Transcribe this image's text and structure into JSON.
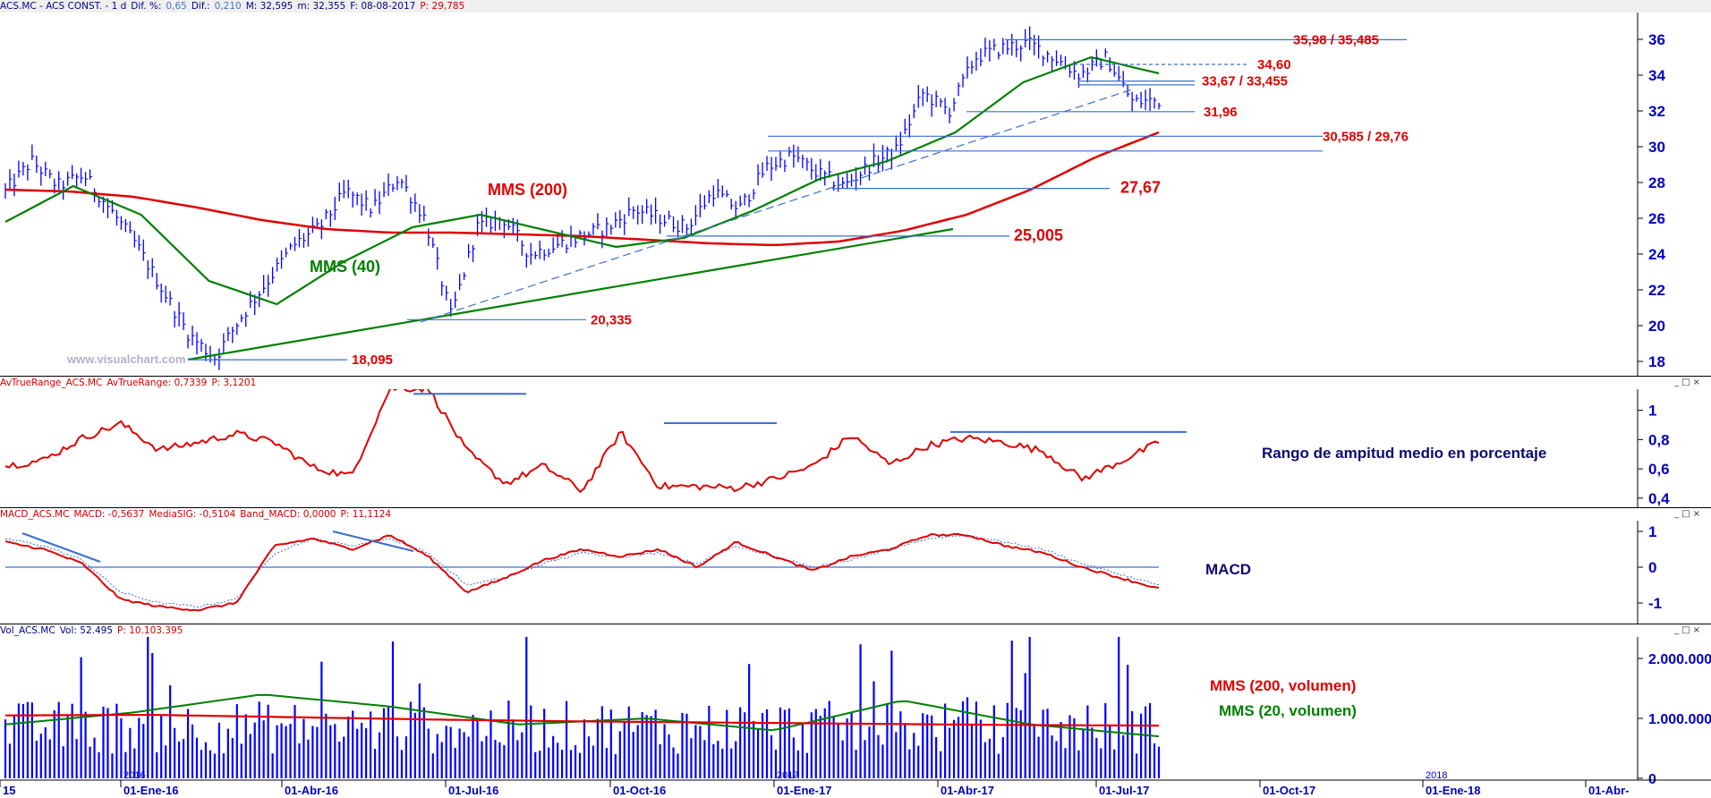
{
  "colors": {
    "bars": "#0000ff",
    "red": "#e00000",
    "green": "#008000",
    "blue": "#3c6fd0",
    "label_red": "#e00000",
    "navy": "#0a0a70",
    "axis": "#0000c0"
  },
  "main": {
    "header": {
      "sym": "ACS.MC - ACS CONST. -  1 d",
      "dif_pct_label": "Dif. %:",
      "dif_pct": "0,65",
      "dif_label": "Dif.:",
      "dif": "0,210",
      "max": "M: 32,595",
      "min": "m: 32,355",
      "date": "F: 08-08-2017",
      "p": "P: 29,785"
    },
    "watermark": "www.visualchart.com",
    "labels": {
      "mms200": "MMS (200)",
      "mms40": "MMS (40)"
    },
    "yticks": [
      18,
      20,
      22,
      24,
      26,
      28,
      30,
      32,
      34,
      36
    ]
  },
  "atr": {
    "header": {
      "name": "AvTrueRange_ACS.MC",
      "val": "AvTrueRange: 0,7339",
      "p": "P: 3,1201"
    },
    "caption": "Rango de ampitud medio en porcentaje",
    "yticks": [
      "0,4",
      "0,6",
      "0,8",
      "1"
    ]
  },
  "macd": {
    "header": {
      "name": "MACD_ACS.MC",
      "macd": "MACD: -0,5637",
      "sig": "MediaSIG: -0,5104",
      "band": "Band_MACD: 0,0000",
      "p": "P: 11,1124"
    },
    "caption": "MACD",
    "yticks": [
      "1",
      "0",
      "-1"
    ]
  },
  "vol": {
    "header": {
      "name": "Vol_ACS.MC",
      "vol": "Vol: 52.495",
      "p": "P: 10.103.395"
    },
    "caption200": "MMS (200, volumen)",
    "caption20": "MMS (20, volumen)",
    "yticks": [
      "2.000.000",
      "1.000.000",
      "0"
    ]
  },
  "xaxis": {
    "labels": [
      "15",
      "01-Ene-16",
      "01-Abr-16",
      "01-Jul-16",
      "01-Oct-16",
      "01-Ene-17",
      "01-Abr-17",
      "01-Jul-17",
      "01-Oct-17",
      "01-Ene-18",
      "01-Abr-"
    ],
    "year_marks": [
      "2016",
      "2017",
      "2018"
    ]
  },
  "chart_data": [
    {
      "type": "line",
      "title": "ACS.MC - ACS CONST.",
      "series": [
        {
          "name": "MMS (200)",
          "values": [
            27.6,
            27.5,
            27.2,
            26.6,
            25.9,
            25.4,
            25.2,
            25.2,
            25.1,
            25.0,
            24.8,
            24.6,
            24.5,
            24.7,
            25.3,
            26.2,
            27.6,
            29.4,
            30.8
          ]
        },
        {
          "name": "MMS (40)",
          "values": [
            25.8,
            27.8,
            26.2,
            22.5,
            21.2,
            23.6,
            25.5,
            26.2,
            25.3,
            24.4,
            24.9,
            26.4,
            28.2,
            29.2,
            30.8,
            33.6,
            35.0,
            34.1
          ]
        }
      ],
      "levels": [
        {
          "label": "35,98 / 35,485",
          "value": 35.98
        },
        {
          "label": "34,60",
          "value": 34.6
        },
        {
          "label": "33,67 / 33,455",
          "value": 33.67
        },
        {
          "label": "31,96",
          "value": 31.96
        },
        {
          "label": "30,585 / 29,76",
          "value": 30.585
        },
        {
          "label": "27,67",
          "value": 27.67
        },
        {
          "label": "25,005",
          "value": 25.005
        },
        {
          "label": "20,335",
          "value": 20.335
        },
        {
          "label": "18,095",
          "value": 18.095
        }
      ],
      "ylim": [
        17.5,
        37
      ]
    },
    {
      "type": "line",
      "title": "AvTrueRange_ACS.MC",
      "series": [
        {
          "name": "AvTrueRange",
          "values": [
            0.62,
            0.66,
            0.81,
            0.91,
            0.73,
            0.78,
            0.84,
            0.78,
            0.61,
            0.55,
            1.15,
            1.15,
            0.72,
            0.5,
            0.62,
            0.45,
            0.85,
            0.48,
            0.48,
            0.47,
            0.53,
            0.62,
            0.83,
            0.63,
            0.76,
            0.81,
            0.78,
            0.72,
            0.53,
            0.65,
            0.78
          ]
        }
      ],
      "ylim": [
        0.35,
        1.12
      ]
    },
    {
      "type": "line",
      "title": "MACD_ACS.MC",
      "series": [
        {
          "name": "MACD",
          "values": [
            0.7,
            0.5,
            0.1,
            -0.9,
            -1.1,
            -1.2,
            -1.0,
            0.6,
            0.8,
            0.5,
            0.9,
            0.3,
            -0.7,
            -0.3,
            0.2,
            0.5,
            0.3,
            0.5,
            0.0,
            0.7,
            0.3,
            -0.1,
            0.3,
            0.5,
            0.9,
            0.9,
            0.6,
            0.4,
            0.0,
            -0.3,
            -0.6
          ]
        },
        {
          "name": "MediaSIG",
          "values": [
            0.8,
            0.6,
            0.2,
            -0.7,
            -1.0,
            -1.1,
            -0.9,
            0.4,
            0.8,
            0.6,
            0.8,
            0.4,
            -0.5,
            -0.3,
            0.1,
            0.4,
            0.3,
            0.4,
            0.1,
            0.6,
            0.3,
            0.0,
            0.2,
            0.5,
            0.8,
            0.9,
            0.7,
            0.5,
            0.1,
            -0.2,
            -0.5
          ]
        }
      ],
      "ylim": [
        -1.5,
        1.15
      ]
    },
    {
      "type": "bar",
      "title": "Vol_ACS.MC",
      "series": [
        {
          "name": "MMS (200, volumen)",
          "values": [
            1050000,
            1060000,
            1020000,
            980000,
            950000,
            930000,
            910000,
            890000,
            880000
          ]
        },
        {
          "name": "MMS (20, volumen)",
          "values": [
            900000,
            1100000,
            1400000,
            1200000,
            900000,
            1000000,
            800000,
            1300000,
            900000,
            700000
          ]
        }
      ],
      "ylim": [
        0,
        2300000
      ]
    }
  ]
}
